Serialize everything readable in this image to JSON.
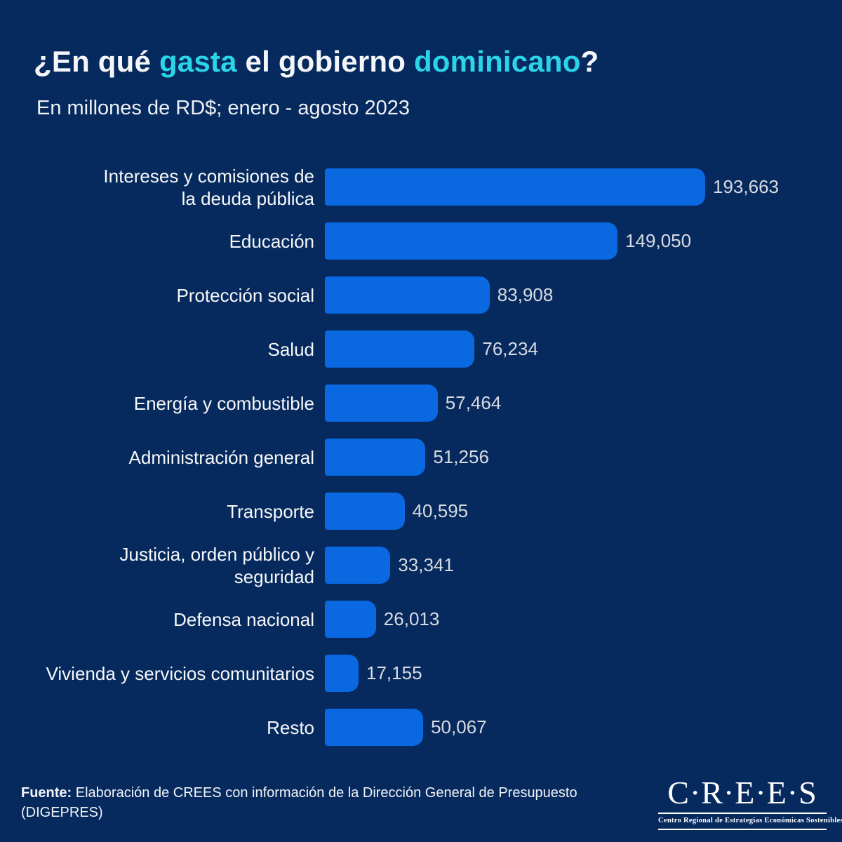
{
  "colors": {
    "background": "#062A5E",
    "accent_cyan": "#2BD5E8",
    "bar_blue": "#0A68E1",
    "title_white": "#F4F6F9",
    "value_gray": "#D8DBE2"
  },
  "title": {
    "parts": [
      {
        "text": "¿En qué ",
        "accent": false
      },
      {
        "text": "gasta",
        "accent": true
      },
      {
        "text": " el gobierno ",
        "accent": false
      },
      {
        "text": "dominicano",
        "accent": true
      },
      {
        "text": "?",
        "accent": false
      }
    ]
  },
  "subtitle": "En millones de RD$; enero - agosto 2023",
  "chart_data": {
    "type": "bar",
    "orientation": "horizontal",
    "title": "¿En qué gasta el gobierno dominicano?",
    "subtitle": "En millones de RD$; enero - agosto 2023",
    "unit": "millones de RD$",
    "period": "enero - agosto 2023",
    "xlim": [
      0,
      193663
    ],
    "grid": false,
    "legend": false,
    "bar_color": "#0A68E1",
    "categories": [
      "Intereses y comisiones de\nla deuda pública",
      "Educación",
      "Protección social",
      "Salud",
      "Energía y combustible",
      "Administración general",
      "Transporte",
      "Justicia, orden público y\nseguridad",
      "Defensa nacional",
      "Vivienda y servicios comunitarios",
      "Resto"
    ],
    "values": [
      193663,
      149050,
      83908,
      76234,
      57464,
      51256,
      40595,
      33341,
      26013,
      17155,
      50067
    ],
    "value_labels": [
      "193,663",
      "149,050",
      "83,908",
      "76,234",
      "57,464",
      "51,256",
      "40,595",
      "33,341",
      "26,013",
      "17,155",
      "50,067"
    ]
  },
  "footer": {
    "source_label": "Fuente:",
    "source_text": " Elaboración de CREES con información de la Dirección General de Presupuesto (DIGEPRES)"
  },
  "logo": {
    "name": "C·R·E·E·S",
    "tagline": "Centro Regional de Estrategias Económicas Sostenibles"
  }
}
